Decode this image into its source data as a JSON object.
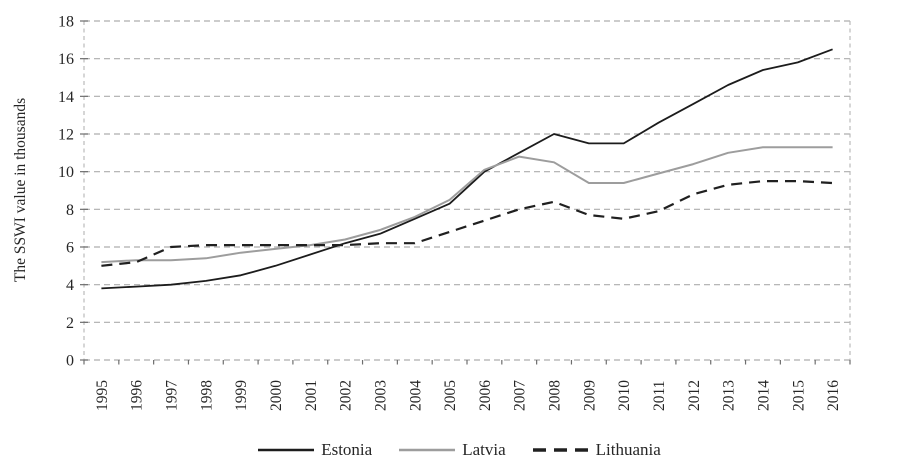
{
  "chart_data": {
    "type": "line",
    "x": [
      1995,
      1996,
      1997,
      1998,
      1999,
      2000,
      2001,
      2002,
      2003,
      2004,
      2005,
      2006,
      2007,
      2008,
      2009,
      2010,
      2011,
      2012,
      2013,
      2014,
      2015,
      2016
    ],
    "series": [
      {
        "name": "Estonia",
        "color": "#1c1c1c",
        "dash": "solid",
        "values": [
          3.8,
          3.9,
          4.0,
          4.2,
          4.5,
          5.0,
          5.6,
          6.2,
          6.7,
          7.5,
          8.3,
          10.0,
          11.0,
          12.0,
          11.5,
          11.5,
          12.6,
          13.6,
          14.6,
          15.4,
          15.8,
          16.5
        ]
      },
      {
        "name": "Latvia",
        "color": "#9d9d9d",
        "dash": "solid",
        "values": [
          5.2,
          5.3,
          5.3,
          5.4,
          5.7,
          5.9,
          6.1,
          6.4,
          6.9,
          7.6,
          8.5,
          10.1,
          10.8,
          10.5,
          9.4,
          9.4,
          9.9,
          10.4,
          11.0,
          11.3,
          11.3,
          11.3
        ]
      },
      {
        "name": "Lithuania",
        "color": "#202020",
        "dash": "dashed",
        "values": [
          5.0,
          5.2,
          6.0,
          6.1,
          6.1,
          6.1,
          6.1,
          6.1,
          6.2,
          6.2,
          6.8,
          7.4,
          8.0,
          8.4,
          7.7,
          7.5,
          7.9,
          8.8,
          9.3,
          9.5,
          9.5,
          9.4
        ]
      }
    ],
    "title": "",
    "xlabel": "",
    "ylabel": "The SSWI value in thousands",
    "ylim": [
      0,
      18
    ],
    "yticks": [
      0,
      2,
      4,
      6,
      8,
      10,
      12,
      14,
      16,
      18
    ],
    "grid": "horizontal-dashed",
    "legend_position": "bottom",
    "colors": {
      "gridline": "#adadad",
      "plot_edge": "#b5b5b5",
      "tick": "#6e6e6e",
      "text": "#262626",
      "background": "#ffffff"
    }
  }
}
